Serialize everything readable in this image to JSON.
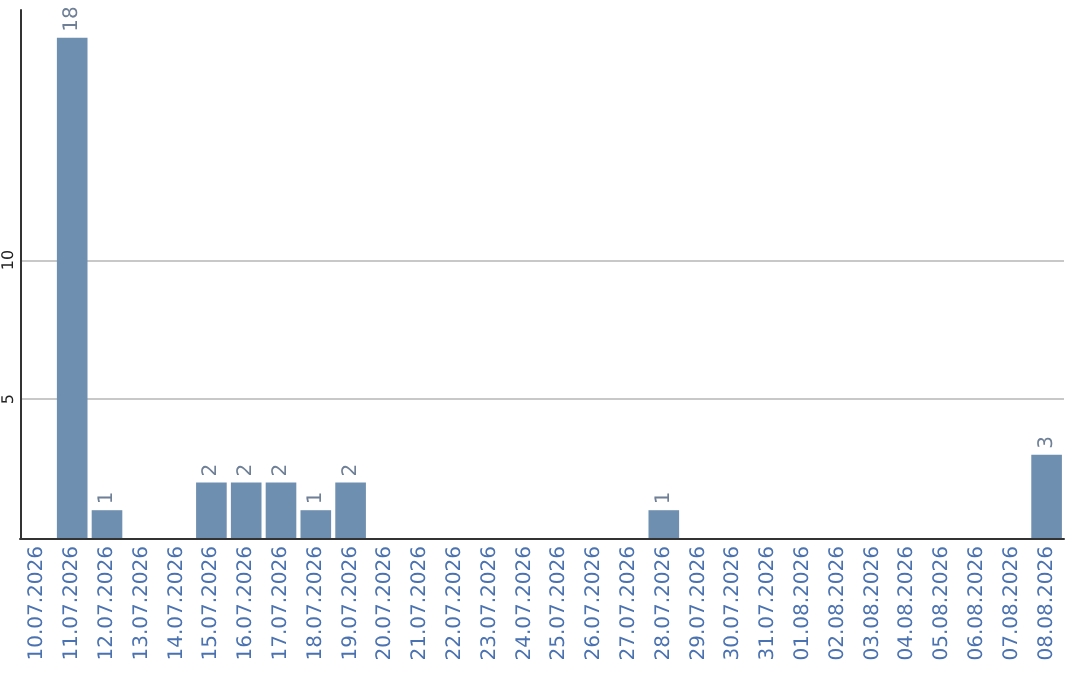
{
  "chart_data": {
    "type": "bar",
    "categories": [
      "10.07.2026",
      "11.07.2026",
      "12.07.2026",
      "13.07.2026",
      "14.07.2026",
      "15.07.2026",
      "16.07.2026",
      "17.07.2026",
      "18.07.2026",
      "19.07.2026",
      "20.07.2026",
      "21.07.2026",
      "22.07.2026",
      "23.07.2026",
      "24.07.2026",
      "25.07.2026",
      "26.07.2026",
      "27.07.2026",
      "28.07.2026",
      "29.07.2026",
      "30.07.2026",
      "31.07.2026",
      "01.08.2026",
      "02.08.2026",
      "03.08.2026",
      "04.08.2026",
      "05.08.2026",
      "06.08.2026",
      "07.08.2026",
      "08.08.2026"
    ],
    "values": [
      0,
      18,
      1,
      0,
      0,
      2,
      2,
      2,
      1,
      2,
      0,
      0,
      0,
      0,
      0,
      0,
      0,
      0,
      1,
      0,
      0,
      0,
      0,
      0,
      0,
      0,
      0,
      0,
      0,
      3
    ],
    "value_labels": [
      null,
      "18",
      "1",
      null,
      null,
      "2",
      "2",
      "2",
      "1",
      "2",
      null,
      null,
      null,
      null,
      null,
      null,
      null,
      null,
      "1",
      null,
      null,
      null,
      null,
      null,
      null,
      null,
      null,
      null,
      null,
      "3"
    ],
    "color": "#6e8fb0",
    "ylim": [
      0,
      19
    ],
    "yticks": [
      5,
      10
    ],
    "grid": "y"
  }
}
